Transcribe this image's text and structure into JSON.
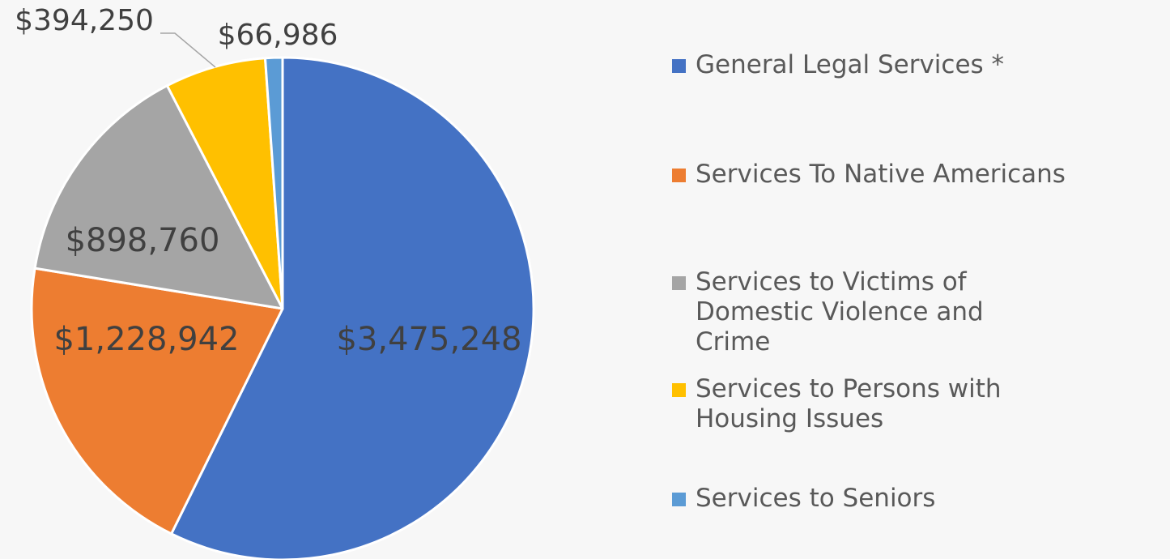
{
  "chart_data": {
    "type": "pie",
    "title": "",
    "legend_position": "right",
    "slices": [
      {
        "label": "General Legal Services *",
        "value": 3475248,
        "value_label": "$3,475,248",
        "color": "#4472c4"
      },
      {
        "label": "Services To Native Americans",
        "value": 1228942,
        "value_label": "$1,228,942",
        "color": "#ed7d31"
      },
      {
        "label": "Services to Victims of Domestic Violence and Crime",
        "value": 898760,
        "value_label": "$898,760",
        "color": "#a5a5a5"
      },
      {
        "label": "Services to Persons with Housing Issues",
        "value": 394250,
        "value_label": "$394,250",
        "color": "#ffc000"
      },
      {
        "label": "Services to Seniors",
        "value": 66986,
        "value_label": "$66,986",
        "color": "#5b9bd5"
      }
    ]
  }
}
